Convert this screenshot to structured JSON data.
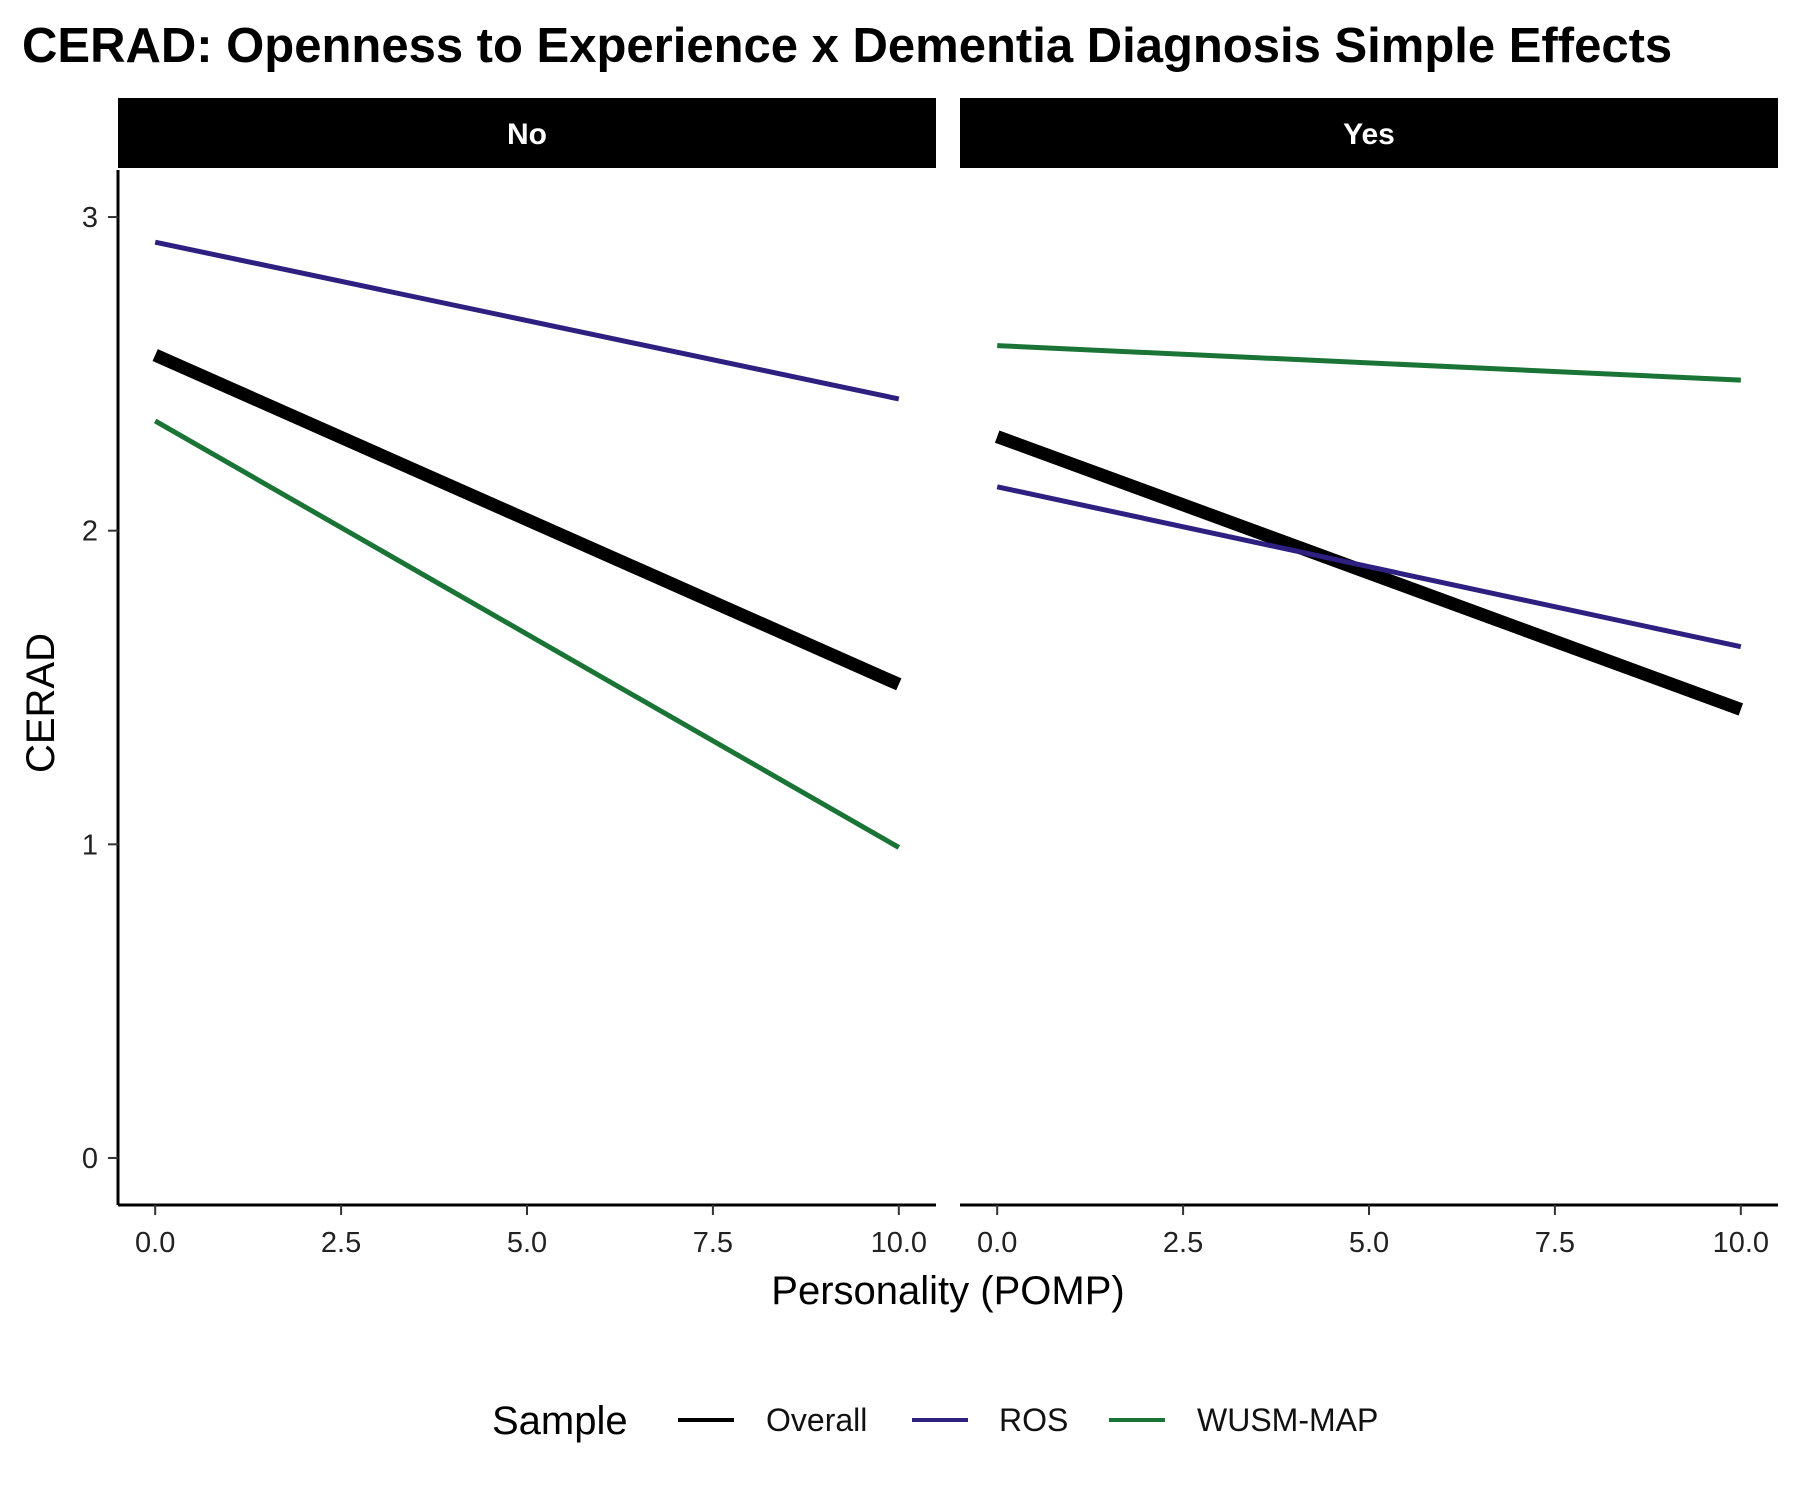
{
  "chart_data": {
    "type": "line",
    "title": "CERAD: Openness to Experience x Dementia Diagnosis Simple Effects",
    "xlabel": "Personality (POMP)",
    "ylabel": "CERAD",
    "xlim": [
      -0.5,
      10.5
    ],
    "ylim": [
      -0.15,
      3.15
    ],
    "x_ticks": [
      0,
      2.5,
      5,
      7.5,
      10
    ],
    "x_tick_labels": [
      "0.0",
      "2.5",
      "5.0",
      "7.5",
      "10.0"
    ],
    "y_ticks": [
      0,
      1,
      2,
      3
    ],
    "y_tick_labels": [
      "0",
      "1",
      "2",
      "3"
    ],
    "grid": false,
    "legend": {
      "title": "Sample",
      "position": "bottom",
      "entries": [
        {
          "label": "Overall",
          "color": "#000000"
        },
        {
          "label": "ROS",
          "color": "#2E2080"
        },
        {
          "label": "WUSM-MAP",
          "color": "#1A7435"
        }
      ]
    },
    "facets": [
      {
        "label": "No",
        "series": [
          {
            "name": "Overall",
            "color": "#000000",
            "x": [
              0,
              10
            ],
            "y": [
              2.56,
              1.51
            ]
          },
          {
            "name": "ROS",
            "color": "#2E2080",
            "x": [
              0,
              10
            ],
            "y": [
              2.92,
              2.42
            ]
          },
          {
            "name": "WUSM-MAP",
            "color": "#1A7435",
            "x": [
              0,
              10
            ],
            "y": [
              2.35,
              0.99
            ]
          }
        ]
      },
      {
        "label": "Yes",
        "series": [
          {
            "name": "Overall",
            "color": "#000000",
            "x": [
              0,
              10
            ],
            "y": [
              2.3,
              1.43
            ]
          },
          {
            "name": "ROS",
            "color": "#2E2080",
            "x": [
              0,
              10
            ],
            "y": [
              2.14,
              1.63
            ]
          },
          {
            "name": "WUSM-MAP",
            "color": "#1A7435",
            "x": [
              0,
              10
            ],
            "y": [
              2.59,
              2.48
            ]
          }
        ]
      }
    ]
  }
}
